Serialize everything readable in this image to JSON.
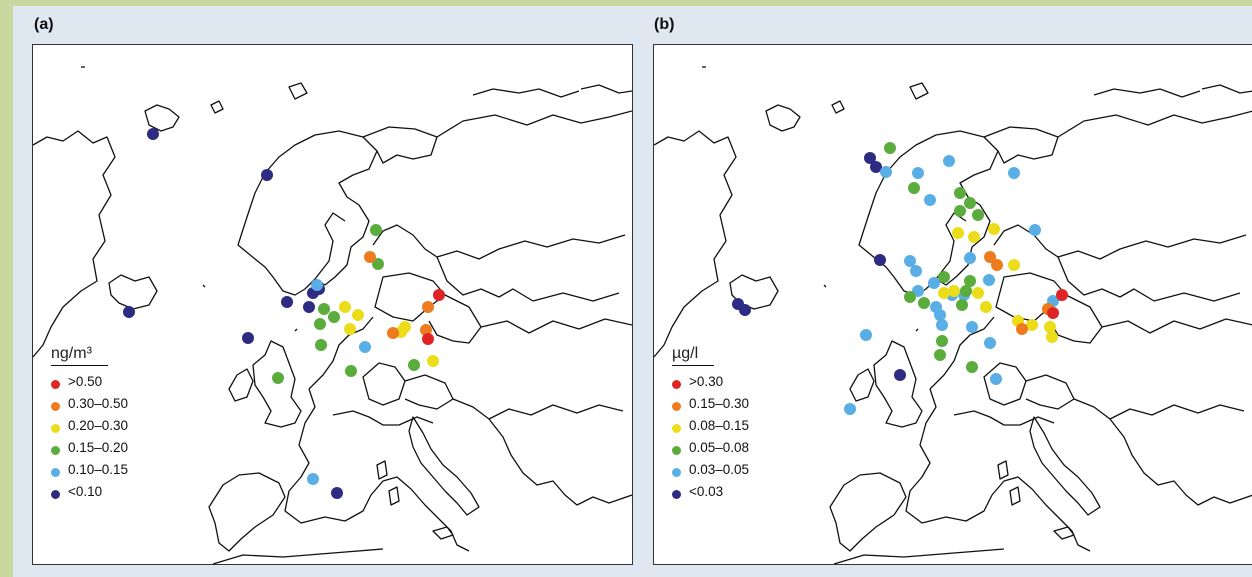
{
  "panels": [
    {
      "label": "(a)",
      "legend": {
        "title": "ng/m³",
        "items": [
          {
            "label": ">0.50",
            "color": "#e02424"
          },
          {
            "label": "0.30–0.50",
            "color": "#ee7b1e"
          },
          {
            "label": "0.20–0.30",
            "color": "#ecdd1a"
          },
          {
            "label": "0.15–0.20",
            "color": "#5aac3c"
          },
          {
            "label": "0.10–0.15",
            "color": "#5aaee6"
          },
          {
            "label": "<0.10",
            "color": "#2e2b83"
          }
        ]
      }
    },
    {
      "label": "(b)",
      "legend": {
        "title": "µg/l",
        "items": [
          {
            "label": ">0.30",
            "color": "#e02424"
          },
          {
            "label": "0.15–0.30",
            "color": "#ee7b1e"
          },
          {
            "label": "0.08–0.15",
            "color": "#ecdd1a"
          },
          {
            "label": "0.05–0.08",
            "color": "#5aac3c"
          },
          {
            "label": "0.03–0.05",
            "color": "#5aaee6"
          },
          {
            "label": "<0.03",
            "color": "#2e2b83"
          }
        ]
      }
    }
  ]
}
